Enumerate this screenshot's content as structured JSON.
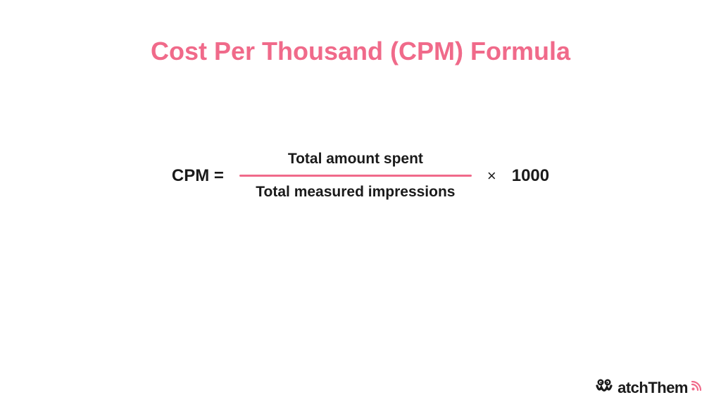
{
  "colors": {
    "title": "#f06a8a",
    "text": "#1a1a1a",
    "divider": "#f06a8a",
    "logo_text": "#1a1a1a",
    "logo_rss": "#f06a8a",
    "background": "#ffffff"
  },
  "title": {
    "text": "Cost Per Thousand (CPM) Formula",
    "fontsize": 36
  },
  "formula": {
    "lhs": "CPM =",
    "numerator": "Total  amount spent",
    "denominator": "Total  measured impressions",
    "times_symbol": "×",
    "multiplier": "1000",
    "lhs_fontsize": 24,
    "fraction_fontsize": 21,
    "times_fontsize": 22,
    "multiplier_fontsize": 24,
    "divider_width": 330,
    "divider_thickness": 3
  },
  "logo": {
    "text": "atchThem",
    "fontsize": 22
  }
}
